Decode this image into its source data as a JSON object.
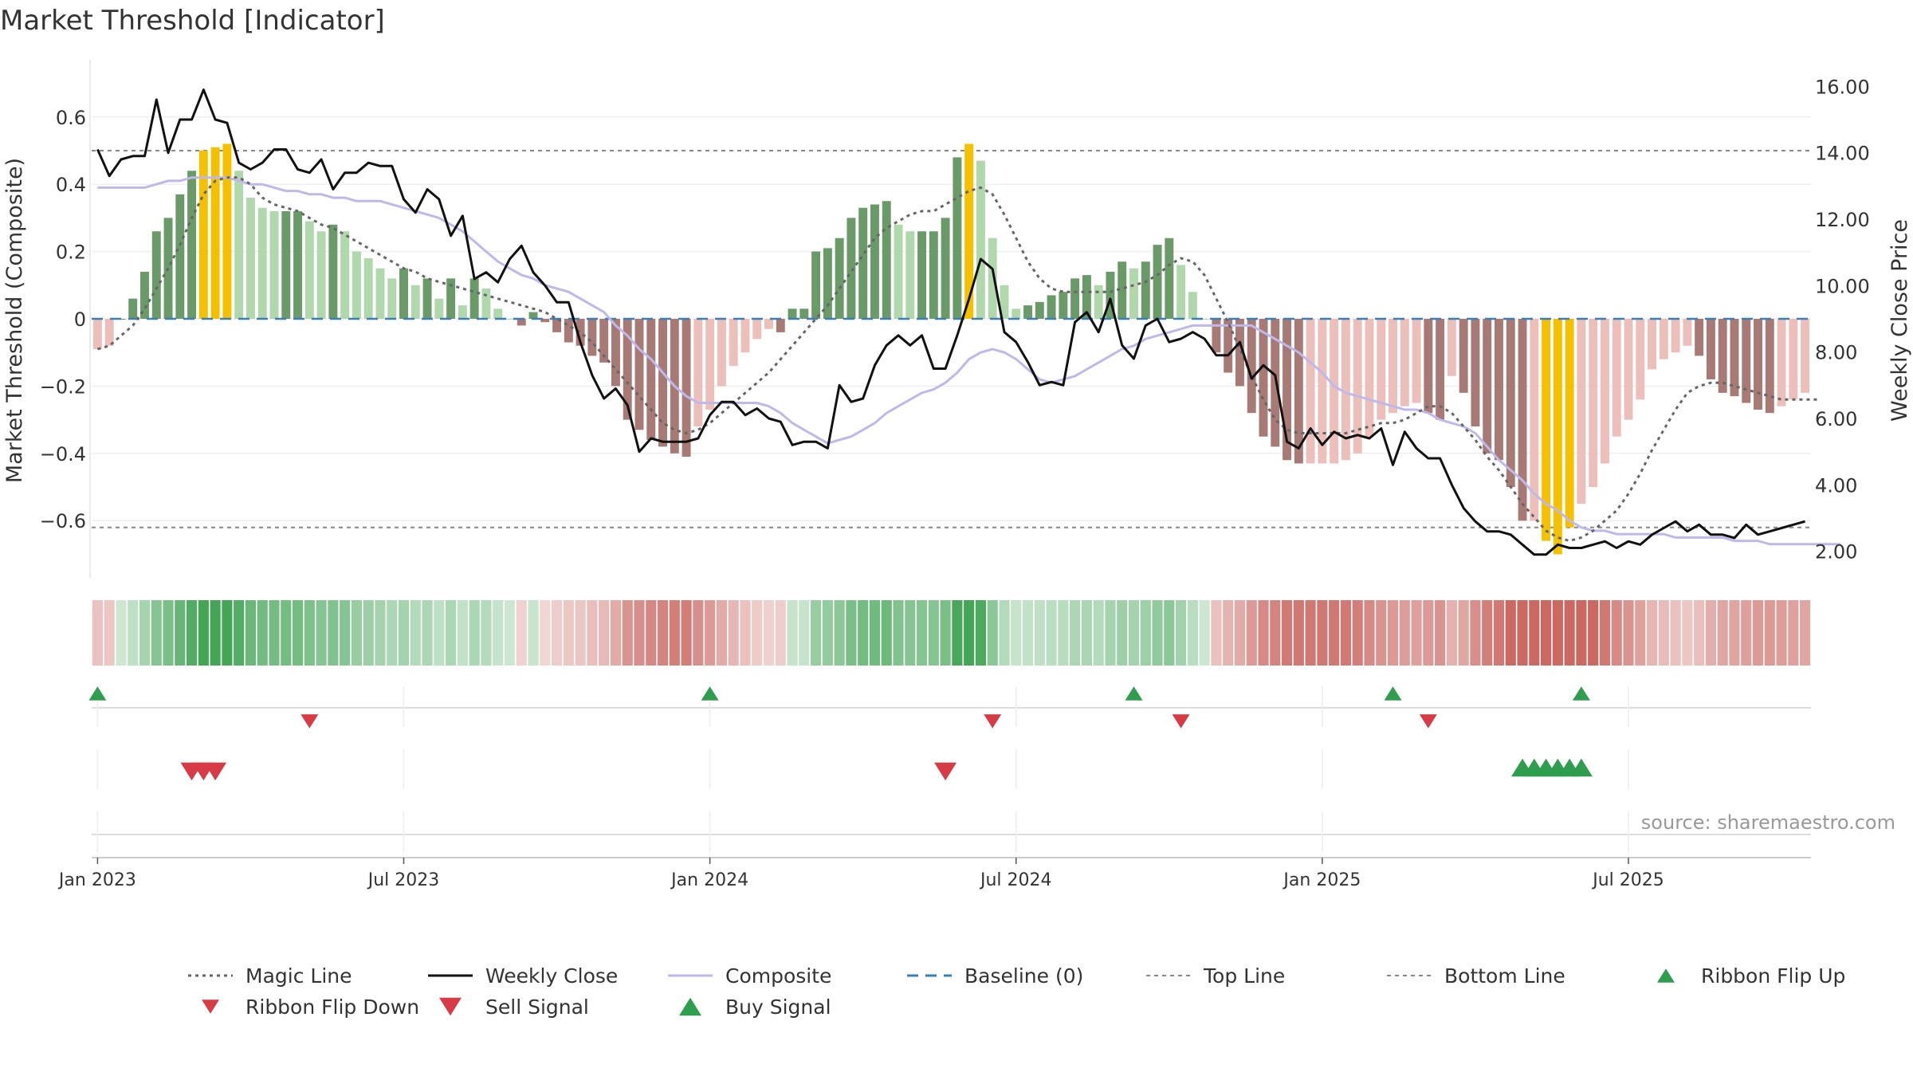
{
  "chart_data": {
    "type": "bar",
    "title": "Market Threshold [Indicator]",
    "ylabel_left": "Market Threshold (Composite)",
    "ylabel_right": "Weekly Close Price",
    "ylim_left": [
      -0.77,
      0.77
    ],
    "ylim_right": [
      1.2,
      16.8
    ],
    "left_ticks": [
      "0.6",
      "0.4",
      "0.2",
      "0",
      "−0.2",
      "−0.4",
      "−0.6"
    ],
    "left_tick_values": [
      0.6,
      0.4,
      0.2,
      0,
      -0.2,
      -0.4,
      -0.6
    ],
    "right_ticks": [
      "16.00",
      "14.00",
      "12.00",
      "10.00",
      "8.00",
      "6.00",
      "4.00",
      "2.00"
    ],
    "right_tick_values": [
      16,
      14,
      12,
      10,
      8,
      6,
      4,
      2
    ],
    "x_ticks": [
      "Jan 2023",
      "Jul 2023",
      "Jan 2024",
      "Jul 2024",
      "Jan 2025",
      "Jul 2025"
    ],
    "x_tick_weeks": [
      1,
      27,
      53,
      79,
      105,
      131
    ],
    "top_line": 0.5,
    "bottom_line": -0.62,
    "source": "source: sharemaestro.com",
    "legend": [
      {
        "label": "Magic Line",
        "kind": "dotted"
      },
      {
        "label": "Weekly Close",
        "kind": "solid"
      },
      {
        "label": "Composite",
        "kind": "composite"
      },
      {
        "label": "Baseline (0)",
        "kind": "dashed"
      },
      {
        "label": "Top Line",
        "kind": "thin-dashed"
      },
      {
        "label": "Bottom Line",
        "kind": "thin-dashed"
      },
      {
        "label": "Ribbon Flip Up",
        "kind": "tri-up-small"
      },
      {
        "label": "Ribbon Flip Down",
        "kind": "tri-down-small"
      },
      {
        "label": "Sell Signal",
        "kind": "tri-down"
      },
      {
        "label": "Buy Signal",
        "kind": "tri-up"
      }
    ],
    "series": [
      {
        "name": "Histogram",
        "values": [
          -0.09,
          -0.08,
          0.0,
          0.06,
          0.14,
          0.26,
          0.3,
          0.37,
          0.44,
          0.5,
          0.51,
          0.52,
          0.44,
          0.36,
          0.33,
          0.32,
          0.32,
          0.32,
          0.29,
          0.26,
          0.28,
          0.26,
          0.2,
          0.18,
          0.15,
          0.12,
          0.15,
          0.1,
          0.12,
          0.06,
          0.12,
          0.04,
          0.12,
          0.09,
          0.03,
          0.0,
          -0.02,
          0.02,
          -0.01,
          -0.04,
          -0.07,
          -0.08,
          -0.11,
          -0.13,
          -0.2,
          -0.3,
          -0.33,
          -0.36,
          -0.38,
          -0.4,
          -0.41,
          -0.32,
          -0.27,
          -0.2,
          -0.14,
          -0.1,
          -0.06,
          -0.03,
          -0.04,
          0.03,
          0.03,
          0.2,
          0.21,
          0.24,
          0.3,
          0.33,
          0.34,
          0.35,
          0.28,
          0.26,
          0.26,
          0.26,
          0.3,
          0.48,
          0.52,
          0.47,
          0.24,
          0.1,
          0.03,
          0.04,
          0.05,
          0.07,
          0.08,
          0.12,
          0.13,
          0.1,
          0.14,
          0.17,
          0.15,
          0.17,
          0.22,
          0.24,
          0.16,
          0.08,
          0.0,
          -0.1,
          -0.16,
          -0.2,
          -0.28,
          -0.35,
          -0.38,
          -0.42,
          -0.43,
          -0.43,
          -0.43,
          -0.43,
          -0.42,
          -0.4,
          -0.35,
          -0.3,
          -0.28,
          -0.26,
          -0.25,
          -0.28,
          -0.3,
          -0.17,
          -0.22,
          -0.32,
          -0.4,
          -0.42,
          -0.5,
          -0.6,
          -0.6,
          -0.66,
          -0.7,
          -0.62,
          -0.55,
          -0.5,
          -0.43,
          -0.35,
          -0.3,
          -0.24,
          -0.15,
          -0.12,
          -0.1,
          -0.08,
          -0.11,
          -0.18,
          -0.22,
          -0.23,
          -0.25,
          -0.27,
          -0.28,
          -0.26,
          -0.24,
          -0.22
        ]
      },
      {
        "name": "Weekly Close",
        "values": [
          14.1,
          13.3,
          13.8,
          13.9,
          13.9,
          15.6,
          14.0,
          15.0,
          15.0,
          15.9,
          15.0,
          14.9,
          13.7,
          13.5,
          13.7,
          14.1,
          14.1,
          13.5,
          13.4,
          13.8,
          12.9,
          13.4,
          13.4,
          13.7,
          13.6,
          13.6,
          12.6,
          12.2,
          12.9,
          12.6,
          11.5,
          12.1,
          10.2,
          10.4,
          10.1,
          10.8,
          11.2,
          10.4,
          10.0,
          9.5,
          9.5,
          8.3,
          7.3,
          6.6,
          6.9,
          6.4,
          5.0,
          5.4,
          5.3,
          5.3,
          5.3,
          5.4,
          6.1,
          6.5,
          6.5,
          6.1,
          6.3,
          6.0,
          5.9,
          5.2,
          5.3,
          5.3,
          5.1,
          7.0,
          6.5,
          6.6,
          7.6,
          8.2,
          8.5,
          8.2,
          8.5,
          7.5,
          7.5,
          8.5,
          9.6,
          10.8,
          10.5,
          8.6,
          8.3,
          7.7,
          7.0,
          7.1,
          7.0,
          8.9,
          9.2,
          8.6,
          9.6,
          8.2,
          7.8,
          8.8,
          9.0,
          8.3,
          8.4,
          8.6,
          8.4,
          7.9,
          7.9,
          8.3,
          7.2,
          7.6,
          7.3,
          5.3,
          5.1,
          5.7,
          5.2,
          5.6,
          5.4,
          5.5,
          5.4,
          5.7,
          4.6,
          5.6,
          5.1,
          4.8,
          4.8,
          4.0,
          3.3,
          2.9,
          2.6,
          2.6,
          2.5,
          2.2,
          1.9,
          1.9,
          2.2,
          2.1,
          2.1,
          2.2,
          2.3,
          2.1,
          2.3,
          2.2,
          2.5,
          2.7,
          2.9,
          2.6,
          2.8,
          2.5,
          2.5,
          2.4,
          2.8,
          2.5,
          2.6,
          2.7,
          2.8,
          2.9
        ]
      },
      {
        "name": "Composite",
        "values": [
          0.39,
          0.39,
          0.39,
          0.39,
          0.39,
          0.4,
          0.41,
          0.41,
          0.42,
          0.42,
          0.42,
          0.42,
          0.41,
          0.4,
          0.4,
          0.39,
          0.38,
          0.38,
          0.37,
          0.37,
          0.36,
          0.36,
          0.35,
          0.35,
          0.35,
          0.34,
          0.33,
          0.32,
          0.31,
          0.3,
          0.28,
          0.26,
          0.23,
          0.2,
          0.17,
          0.15,
          0.13,
          0.12,
          0.1,
          0.09,
          0.08,
          0.06,
          0.04,
          0.02,
          -0.02,
          -0.05,
          -0.09,
          -0.12,
          -0.16,
          -0.2,
          -0.23,
          -0.25,
          -0.25,
          -0.25,
          -0.25,
          -0.25,
          -0.25,
          -0.26,
          -0.28,
          -0.31,
          -0.33,
          -0.35,
          -0.37,
          -0.36,
          -0.35,
          -0.33,
          -0.31,
          -0.28,
          -0.26,
          -0.24,
          -0.22,
          -0.21,
          -0.19,
          -0.16,
          -0.12,
          -0.1,
          -0.09,
          -0.1,
          -0.12,
          -0.15,
          -0.18,
          -0.19,
          -0.18,
          -0.17,
          -0.15,
          -0.13,
          -0.11,
          -0.09,
          -0.08,
          -0.06,
          -0.05,
          -0.04,
          -0.03,
          -0.02,
          -0.02,
          -0.02,
          -0.02,
          -0.02,
          -0.02,
          -0.04,
          -0.06,
          -0.08,
          -0.1,
          -0.13,
          -0.16,
          -0.2,
          -0.22,
          -0.23,
          -0.24,
          -0.25,
          -0.26,
          -0.27,
          -0.27,
          -0.28,
          -0.3,
          -0.31,
          -0.32,
          -0.34,
          -0.38,
          -0.42,
          -0.45,
          -0.48,
          -0.52,
          -0.55,
          -0.57,
          -0.6,
          -0.62,
          -0.63,
          -0.63,
          -0.64,
          -0.64,
          -0.64,
          -0.64,
          -0.64,
          -0.65,
          -0.65,
          -0.65,
          -0.65,
          -0.65,
          -0.66,
          -0.66,
          -0.66,
          -0.67,
          -0.67,
          -0.67,
          -0.67,
          -0.67,
          -0.67,
          -0.67
        ]
      },
      {
        "name": "Magic Line",
        "values": [
          -0.09,
          -0.08,
          -0.05,
          -0.02,
          0.03,
          0.09,
          0.15,
          0.22,
          0.3,
          0.37,
          0.41,
          0.42,
          0.42,
          0.4,
          0.36,
          0.34,
          0.33,
          0.32,
          0.3,
          0.28,
          0.27,
          0.25,
          0.23,
          0.21,
          0.19,
          0.17,
          0.15,
          0.14,
          0.12,
          0.11,
          0.1,
          0.09,
          0.08,
          0.07,
          0.06,
          0.05,
          0.04,
          0.03,
          0.02,
          0.0,
          -0.02,
          -0.04,
          -0.07,
          -0.11,
          -0.15,
          -0.19,
          -0.23,
          -0.27,
          -0.31,
          -0.33,
          -0.34,
          -0.33,
          -0.31,
          -0.28,
          -0.25,
          -0.22,
          -0.19,
          -0.16,
          -0.12,
          -0.08,
          -0.04,
          0.0,
          0.04,
          0.09,
          0.14,
          0.19,
          0.24,
          0.27,
          0.29,
          0.31,
          0.32,
          0.32,
          0.34,
          0.36,
          0.38,
          0.39,
          0.37,
          0.31,
          0.24,
          0.17,
          0.12,
          0.09,
          0.08,
          0.08,
          0.08,
          0.08,
          0.08,
          0.09,
          0.1,
          0.11,
          0.13,
          0.16,
          0.18,
          0.17,
          0.13,
          0.06,
          -0.01,
          -0.09,
          -0.17,
          -0.24,
          -0.3,
          -0.33,
          -0.34,
          -0.34,
          -0.34,
          -0.34,
          -0.34,
          -0.33,
          -0.32,
          -0.31,
          -0.31,
          -0.3,
          -0.28,
          -0.26,
          -0.26,
          -0.28,
          -0.32,
          -0.36,
          -0.41,
          -0.45,
          -0.5,
          -0.55,
          -0.59,
          -0.63,
          -0.65,
          -0.66,
          -0.65,
          -0.63,
          -0.6,
          -0.57,
          -0.52,
          -0.46,
          -0.39,
          -0.33,
          -0.27,
          -0.22,
          -0.2,
          -0.19,
          -0.19,
          -0.2,
          -0.21,
          -0.22,
          -0.23,
          -0.24,
          -0.24,
          -0.24,
          -0.24
        ]
      }
    ],
    "sell_signals": [
      9,
      10,
      11,
      73
    ],
    "buy_signals": [
      122,
      123,
      124,
      125,
      126,
      127
    ],
    "ribbon_flip_up": [
      1,
      53,
      89,
      111,
      127
    ],
    "ribbon_flip_down": [
      19,
      77,
      93,
      114
    ]
  },
  "colors": {
    "pos_dark": "#6a9a68",
    "pos_light": "#b0d8ac",
    "neg_dark": "#a87a76",
    "neg_light": "#ecbfbb",
    "extreme": "#f5c000",
    "composite": "#c0b8e8",
    "baseline": "#3a7fb5",
    "buy": "#2e9e4e",
    "sell": "#d63b46"
  }
}
